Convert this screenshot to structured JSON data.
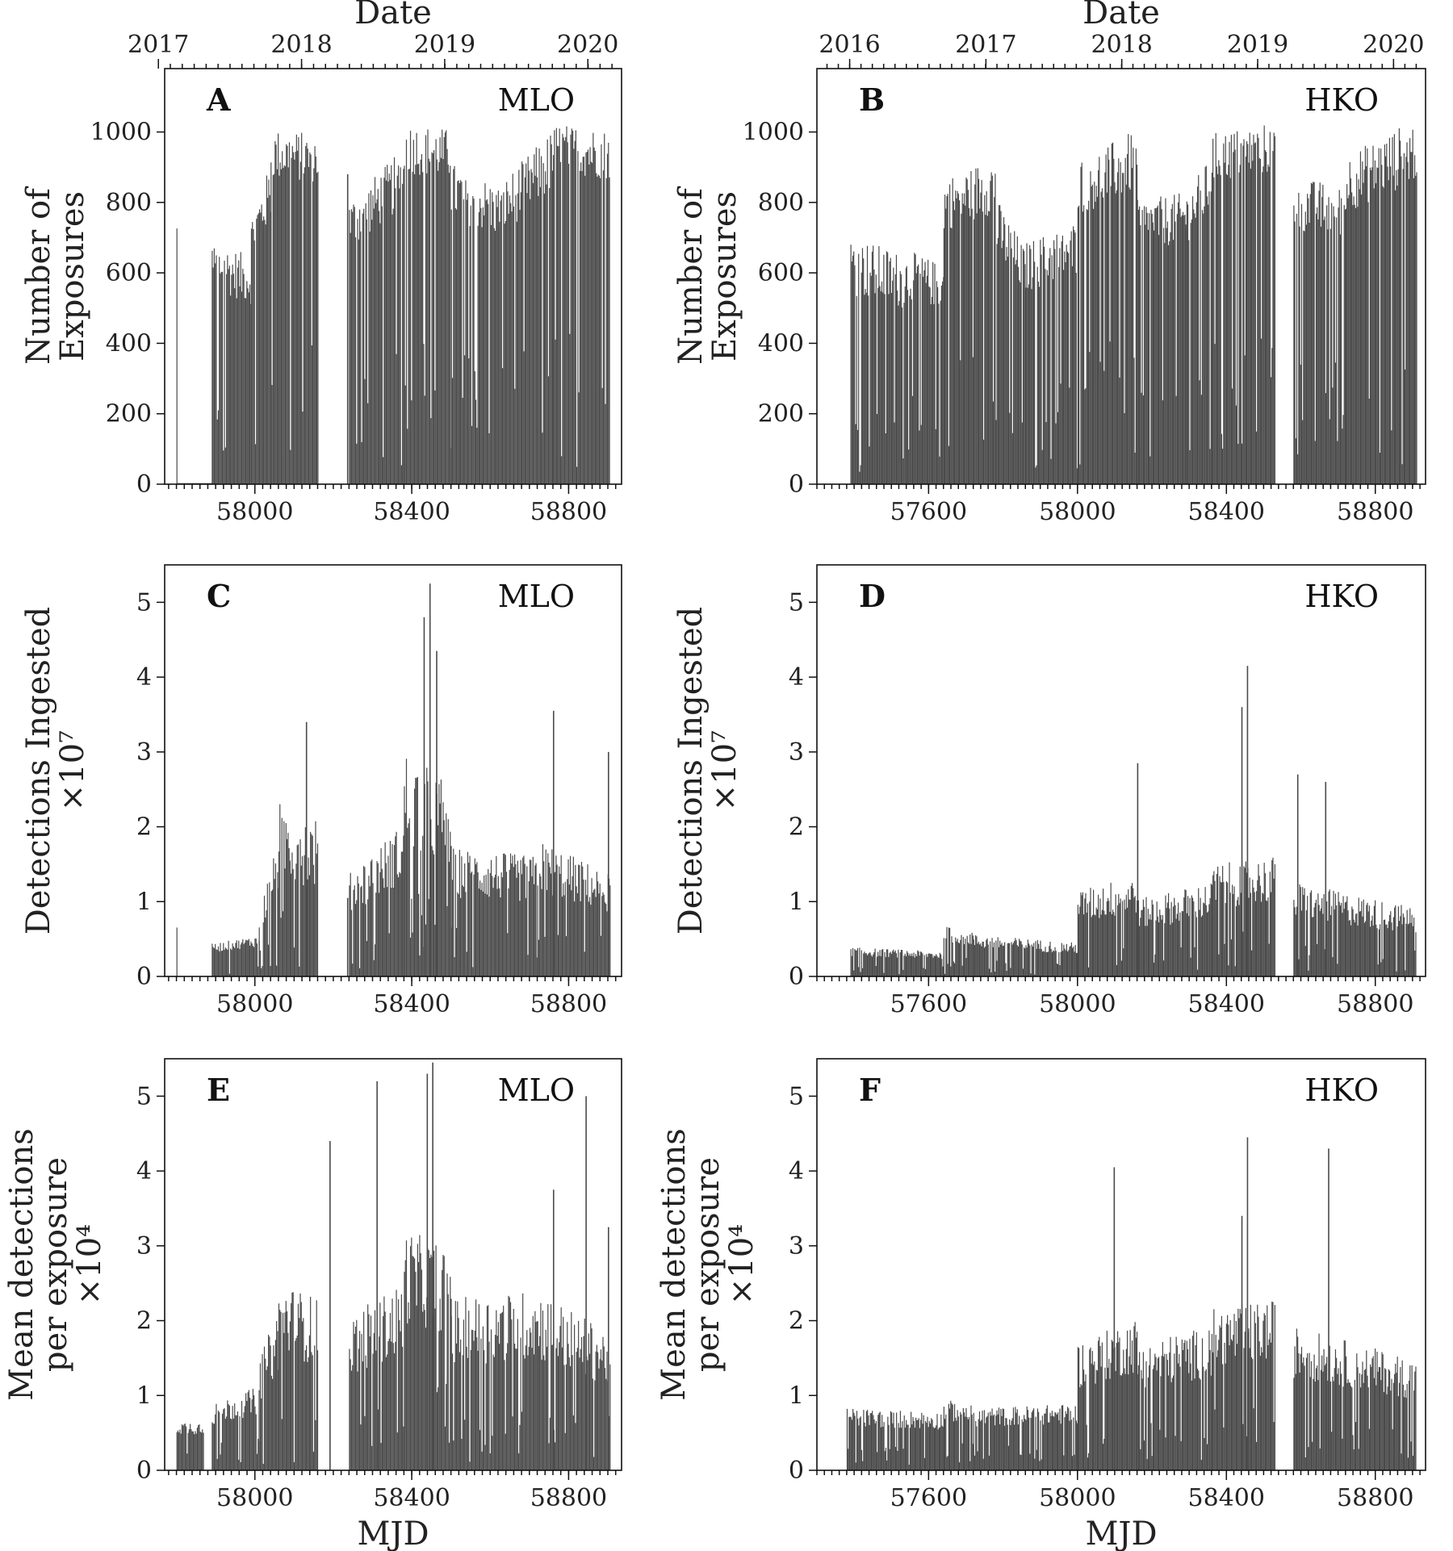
{
  "figure": {
    "x_axis_label": "MJD",
    "top_axis_label": "Date",
    "bar_color": "#4a4a4a",
    "frame_color": "#111111"
  },
  "chart_data": [
    {
      "type": "bar",
      "panel": "A",
      "site": "MLO",
      "ylabel_lines": [
        "Number of",
        "Exposures"
      ],
      "xlim": [
        57770,
        58935
      ],
      "ylim": [
        0,
        1180
      ],
      "yticks": [
        0,
        200,
        400,
        600,
        800,
        1000
      ],
      "xticks": [
        58000,
        58400,
        58800
      ],
      "date_ticks": [
        {
          "label": "2017",
          "mjd": 57754
        },
        {
          "label": "2018",
          "mjd": 58119
        },
        {
          "label": "2019",
          "mjd": 58484
        },
        {
          "label": "2020",
          "mjd": 58849
        }
      ],
      "segments": [
        {
          "mjd": [
            57800,
            57801
          ],
          "values": [
            730,
            730
          ],
          "noise": 0.02
        },
        {
          "mjd": [
            57801,
            57890
          ],
          "values": [
            3,
            3
          ],
          "noise": 0.0
        },
        {
          "mjd": [
            57890,
            57990
          ],
          "values": [
            650,
            600
          ],
          "noise": 0.3
        },
        {
          "mjd": [
            57990,
            58040
          ],
          "values": [
            720,
            860
          ],
          "noise": 0.25
        },
        {
          "mjd": [
            58040,
            58160
          ],
          "values": [
            960,
            950
          ],
          "noise": 0.2
        },
        {
          "mjd": [
            58160,
            58240
          ],
          "values": [
            0,
            0
          ],
          "noise": 0.0
        },
        {
          "mjd": [
            58240,
            58380
          ],
          "values": [
            760,
            900
          ],
          "noise": 0.25
        },
        {
          "mjd": [
            58380,
            58500
          ],
          "values": [
            980,
            960
          ],
          "noise": 0.2
        },
        {
          "mjd": [
            58500,
            58620
          ],
          "values": [
            860,
            800
          ],
          "noise": 0.25
        },
        {
          "mjd": [
            58620,
            58760
          ],
          "values": [
            800,
            950
          ],
          "noise": 0.25
        },
        {
          "mjd": [
            58760,
            58905
          ],
          "values": [
            980,
            960
          ],
          "noise": 0.2
        }
      ],
      "spikes": [
        {
          "mjd": 58235,
          "value": 880
        }
      ]
    },
    {
      "type": "bar",
      "panel": "B",
      "site": "HKO",
      "ylabel_lines": [
        "Number of",
        "Exposures"
      ],
      "xlim": [
        57300,
        58935
      ],
      "ylim": [
        0,
        1180
      ],
      "yticks": [
        0,
        200,
        400,
        600,
        800,
        1000
      ],
      "xticks": [
        57600,
        58000,
        58400,
        58800
      ],
      "date_ticks": [
        {
          "label": "2016",
          "mjd": 57388
        },
        {
          "label": "2017",
          "mjd": 57754
        },
        {
          "label": "2018",
          "mjd": 58119
        },
        {
          "label": "2019",
          "mjd": 58484
        },
        {
          "label": "2020",
          "mjd": 58849
        }
      ],
      "segments": [
        {
          "mjd": [
            57390,
            57540
          ],
          "values": [
            650,
            600
          ],
          "noise": 0.35
        },
        {
          "mjd": [
            57540,
            57640
          ],
          "values": [
            620,
            580
          ],
          "noise": 0.3
        },
        {
          "mjd": [
            57640,
            57780
          ],
          "values": [
            820,
            880
          ],
          "noise": 0.25
        },
        {
          "mjd": [
            57780,
            57860
          ],
          "values": [
            760,
            620
          ],
          "noise": 0.3
        },
        {
          "mjd": [
            57860,
            58000
          ],
          "values": [
            640,
            700
          ],
          "noise": 0.3
        },
        {
          "mjd": [
            58000,
            58160
          ],
          "values": [
            870,
            950
          ],
          "noise": 0.25
        },
        {
          "mjd": [
            58160,
            58290
          ],
          "values": [
            760,
            780
          ],
          "noise": 0.25
        },
        {
          "mjd": [
            58290,
            58360
          ],
          "values": [
            780,
            880
          ],
          "noise": 0.25
        },
        {
          "mjd": [
            58360,
            58530
          ],
          "values": [
            950,
            980
          ],
          "noise": 0.2
        },
        {
          "mjd": [
            58530,
            58580
          ],
          "values": [
            0,
            0
          ],
          "noise": 0.0
        },
        {
          "mjd": [
            58580,
            58720
          ],
          "values": [
            820,
            800
          ],
          "noise": 0.25
        },
        {
          "mjd": [
            58720,
            58910
          ],
          "values": [
            880,
            980
          ],
          "noise": 0.25
        }
      ],
      "spikes": []
    },
    {
      "type": "bar",
      "panel": "C",
      "site": "MLO",
      "ylabel_lines": [
        "Detections Ingested",
        "×10⁷"
      ],
      "xlim": [
        57770,
        58935
      ],
      "ylim": [
        0,
        5.5
      ],
      "yticks": [
        0,
        1,
        2,
        3,
        4,
        5
      ],
      "xticks": [
        58000,
        58400,
        58800
      ],
      "segments": [
        {
          "mjd": [
            57800,
            57801
          ],
          "values": [
            0.65,
            0.65
          ],
          "noise": 0.02
        },
        {
          "mjd": [
            57890,
            58010
          ],
          "values": [
            0.4,
            0.5
          ],
          "noise": 0.4
        },
        {
          "mjd": [
            58010,
            58060
          ],
          "values": [
            0.8,
            1.6
          ],
          "noise": 0.6
        },
        {
          "mjd": [
            58060,
            58160
          ],
          "values": [
            2.0,
            1.8
          ],
          "noise": 0.7
        },
        {
          "mjd": [
            58160,
            58240
          ],
          "values": [
            0,
            0
          ],
          "noise": 0.0
        },
        {
          "mjd": [
            58240,
            58380
          ],
          "values": [
            1.2,
            1.8
          ],
          "noise": 0.6
        },
        {
          "mjd": [
            58380,
            58500
          ],
          "values": [
            2.6,
            2.2
          ],
          "noise": 0.7
        },
        {
          "mjd": [
            58500,
            58720
          ],
          "values": [
            1.5,
            1.4
          ],
          "noise": 0.6
        },
        {
          "mjd": [
            58720,
            58905
          ],
          "values": [
            1.6,
            1.2
          ],
          "noise": 0.6
        }
      ],
      "spikes": [
        {
          "mjd": 58430,
          "value": 4.8
        },
        {
          "mjd": 58445,
          "value": 5.25
        },
        {
          "mjd": 58462,
          "value": 4.35
        },
        {
          "mjd": 58130,
          "value": 3.4
        },
        {
          "mjd": 58760,
          "value": 3.55
        },
        {
          "mjd": 58900,
          "value": 3.0
        },
        {
          "mjd": 58235,
          "value": 1.05
        }
      ]
    },
    {
      "type": "bar",
      "panel": "D",
      "site": "HKO",
      "ylabel_lines": [
        "Detections Ingested",
        "×10⁷"
      ],
      "xlim": [
        57300,
        58935
      ],
      "ylim": [
        0,
        5.5
      ],
      "yticks": [
        0,
        1,
        2,
        3,
        4,
        5
      ],
      "xticks": [
        57600,
        58000,
        58400,
        58800
      ],
      "segments": [
        {
          "mjd": [
            57390,
            57640
          ],
          "values": [
            0.35,
            0.3
          ],
          "noise": 0.45
        },
        {
          "mjd": [
            57640,
            57720
          ],
          "values": [
            0.6,
            0.55
          ],
          "noise": 0.5
        },
        {
          "mjd": [
            57720,
            58000
          ],
          "values": [
            0.5,
            0.4
          ],
          "noise": 0.5
        },
        {
          "mjd": [
            58000,
            58160
          ],
          "values": [
            1.0,
            1.2
          ],
          "noise": 0.6
        },
        {
          "mjd": [
            58160,
            58360
          ],
          "values": [
            0.9,
            1.1
          ],
          "noise": 0.6
        },
        {
          "mjd": [
            58360,
            58530
          ],
          "values": [
            1.3,
            1.4
          ],
          "noise": 0.6
        },
        {
          "mjd": [
            58530,
            58580
          ],
          "values": [
            0,
            0
          ],
          "noise": 0.0
        },
        {
          "mjd": [
            58580,
            58910
          ],
          "values": [
            1.1,
            0.8
          ],
          "noise": 0.6
        }
      ],
      "spikes": [
        {
          "mjd": 58455,
          "value": 4.15
        },
        {
          "mjd": 58440,
          "value": 3.6
        },
        {
          "mjd": 58160,
          "value": 2.85
        },
        {
          "mjd": 58665,
          "value": 2.6
        },
        {
          "mjd": 58590,
          "value": 2.7
        }
      ]
    },
    {
      "type": "bar",
      "panel": "E",
      "site": "MLO",
      "ylabel_lines": [
        "Mean detections",
        "per exposure",
        "×10⁴"
      ],
      "xlim": [
        57770,
        58935
      ],
      "ylim": [
        0,
        5.5
      ],
      "yticks": [
        0,
        1,
        2,
        3,
        4,
        5
      ],
      "xticks": [
        58000,
        58400,
        58800
      ],
      "segments": [
        {
          "mjd": [
            57800,
            57870
          ],
          "values": [
            0.6,
            0.6
          ],
          "noise": 0.4
        },
        {
          "mjd": [
            57890,
            58010
          ],
          "values": [
            0.8,
            1.0
          ],
          "noise": 0.5
        },
        {
          "mjd": [
            58010,
            58060
          ],
          "values": [
            1.3,
            1.9
          ],
          "noise": 0.6
        },
        {
          "mjd": [
            58060,
            58160
          ],
          "values": [
            2.2,
            2.0
          ],
          "noise": 0.6
        },
        {
          "mjd": [
            58160,
            58240
          ],
          "values": [
            0,
            0
          ],
          "noise": 0.0
        },
        {
          "mjd": [
            58240,
            58380
          ],
          "values": [
            1.8,
            2.2
          ],
          "noise": 0.6
        },
        {
          "mjd": [
            58380,
            58500
          ],
          "values": [
            2.8,
            2.6
          ],
          "noise": 0.6
        },
        {
          "mjd": [
            58500,
            58720
          ],
          "values": [
            2.0,
            2.1
          ],
          "noise": 0.6
        },
        {
          "mjd": [
            58720,
            58905
          ],
          "values": [
            2.1,
            1.6
          ],
          "noise": 0.6
        }
      ],
      "spikes": [
        {
          "mjd": 58310,
          "value": 5.2
        },
        {
          "mjd": 58438,
          "value": 5.3
        },
        {
          "mjd": 58452,
          "value": 5.45
        },
        {
          "mjd": 58843,
          "value": 5.0
        },
        {
          "mjd": 58190,
          "value": 4.4
        },
        {
          "mjd": 58760,
          "value": 3.75
        },
        {
          "mjd": 58900,
          "value": 3.25
        }
      ]
    },
    {
      "type": "bar",
      "panel": "F",
      "site": "HKO",
      "ylabel_lines": [
        "Mean detections",
        "per exposure",
        "×10⁴"
      ],
      "xlim": [
        57300,
        58935
      ],
      "ylim": [
        0,
        5.5
      ],
      "yticks": [
        0,
        1,
        2,
        3,
        4,
        5
      ],
      "xticks": [
        57600,
        58000,
        58400,
        58800
      ],
      "segments": [
        {
          "mjd": [
            57380,
            57640
          ],
          "values": [
            0.75,
            0.7
          ],
          "noise": 0.45
        },
        {
          "mjd": [
            57640,
            57720
          ],
          "values": [
            0.85,
            0.8
          ],
          "noise": 0.45
        },
        {
          "mjd": [
            57720,
            58000
          ],
          "values": [
            0.75,
            0.8
          ],
          "noise": 0.45
        },
        {
          "mjd": [
            58000,
            58160
          ],
          "values": [
            1.5,
            1.8
          ],
          "noise": 0.55
        },
        {
          "mjd": [
            58160,
            58360
          ],
          "values": [
            1.5,
            1.7
          ],
          "noise": 0.55
        },
        {
          "mjd": [
            58360,
            58530
          ],
          "values": [
            1.9,
            2.0
          ],
          "noise": 0.55
        },
        {
          "mjd": [
            58530,
            58580
          ],
          "values": [
            0,
            0
          ],
          "noise": 0.0
        },
        {
          "mjd": [
            58580,
            58910
          ],
          "values": [
            1.7,
            1.3
          ],
          "noise": 0.55
        }
      ],
      "spikes": [
        {
          "mjd": 58455,
          "value": 4.45
        },
        {
          "mjd": 58673,
          "value": 4.3
        },
        {
          "mjd": 58097,
          "value": 4.05
        },
        {
          "mjd": 58440,
          "value": 3.4
        }
      ]
    }
  ]
}
